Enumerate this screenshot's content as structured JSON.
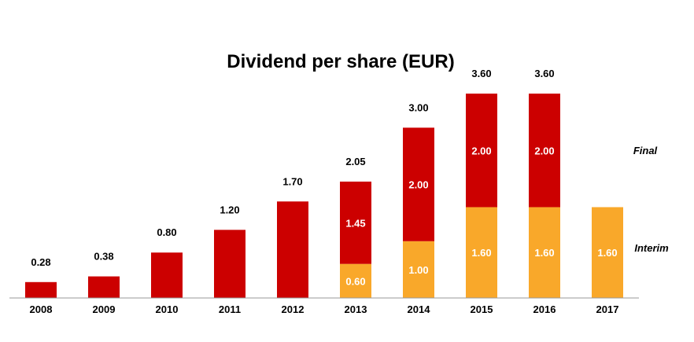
{
  "chart_data": {
    "type": "bar",
    "stacked": true,
    "title": "Dividend per share (EUR)",
    "xlabel": "",
    "ylabel": "",
    "ylim": [
      0,
      3.6
    ],
    "grid": false,
    "legend_position": "right",
    "categories": [
      "2008",
      "2009",
      "2010",
      "2011",
      "2012",
      "2013",
      "2014",
      "2015",
      "2016",
      "2017"
    ],
    "series": [
      {
        "name": "Interim",
        "color": "#f9a82a",
        "values": [
          null,
          null,
          null,
          null,
          null,
          0.6,
          1.0,
          1.6,
          1.6,
          1.6
        ],
        "labels": [
          "",
          "",
          "",
          "",
          "",
          "0.60",
          "1.00",
          "1.60",
          "1.60",
          "1.60"
        ]
      },
      {
        "name": "Final",
        "color": "#cc0000",
        "values": [
          0.28,
          0.38,
          0.8,
          1.2,
          1.7,
          1.45,
          2.0,
          2.0,
          2.0,
          null
        ],
        "labels": [
          "",
          "",
          "",
          "",
          "",
          "1.45",
          "2.00",
          "2.00",
          "2.00",
          ""
        ]
      }
    ],
    "totals": [
      0.28,
      0.38,
      0.8,
      1.2,
      1.7,
      2.05,
      3.0,
      3.6,
      3.6,
      null
    ],
    "total_labels": [
      "0.28",
      "0.38",
      "0.80",
      "1.20",
      "1.70",
      "2.05",
      "3.00",
      "3.60",
      "3.60",
      ""
    ],
    "legend": {
      "final": "Final",
      "interim": "Interim"
    }
  }
}
